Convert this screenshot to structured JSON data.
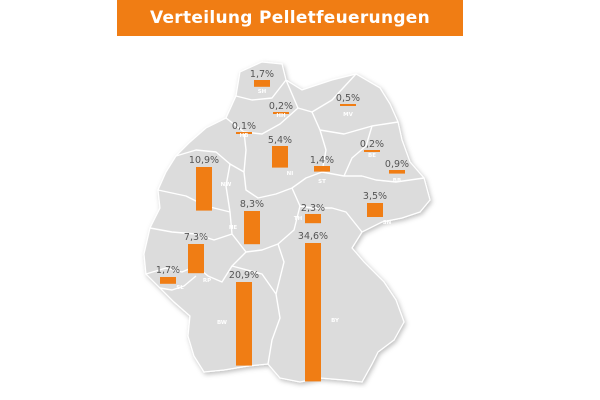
{
  "title": "Verteilung Pelletfeuerungen",
  "colors": {
    "accent": "#f07d14",
    "map_fill": "#dcdcdc",
    "map_border": "#ffffff",
    "label": "#555555"
  },
  "chart_data": {
    "type": "bar",
    "unit": "%",
    "states": [
      {
        "code": "SH",
        "value": 1.7,
        "label": "1,7%"
      },
      {
        "code": "HH",
        "value": 0.2,
        "label": "0,2%"
      },
      {
        "code": "MV",
        "value": 0.5,
        "label": "0,5%"
      },
      {
        "code": "HB",
        "value": 0.1,
        "label": "0,1%"
      },
      {
        "code": "NI",
        "value": 5.4,
        "label": "5,4%"
      },
      {
        "code": "BE",
        "value": 0.2,
        "label": "0,2%"
      },
      {
        "code": "ST",
        "value": 1.4,
        "label": "1,4%"
      },
      {
        "code": "BB",
        "value": 0.9,
        "label": "0,9%"
      },
      {
        "code": "NW",
        "value": 10.9,
        "label": "10,9%"
      },
      {
        "code": "HE",
        "value": 8.3,
        "label": "8,3%"
      },
      {
        "code": "TH",
        "value": 2.3,
        "label": "2,3%"
      },
      {
        "code": "SN",
        "value": 3.5,
        "label": "3,5%"
      },
      {
        "code": "RP",
        "value": 7.3,
        "label": "7,3%"
      },
      {
        "code": "SL",
        "value": 1.7,
        "label": "1,7%"
      },
      {
        "code": "BW",
        "value": 20.9,
        "label": "20,9%"
      },
      {
        "code": "BY",
        "value": 34.6,
        "label": "34,6%"
      }
    ]
  }
}
